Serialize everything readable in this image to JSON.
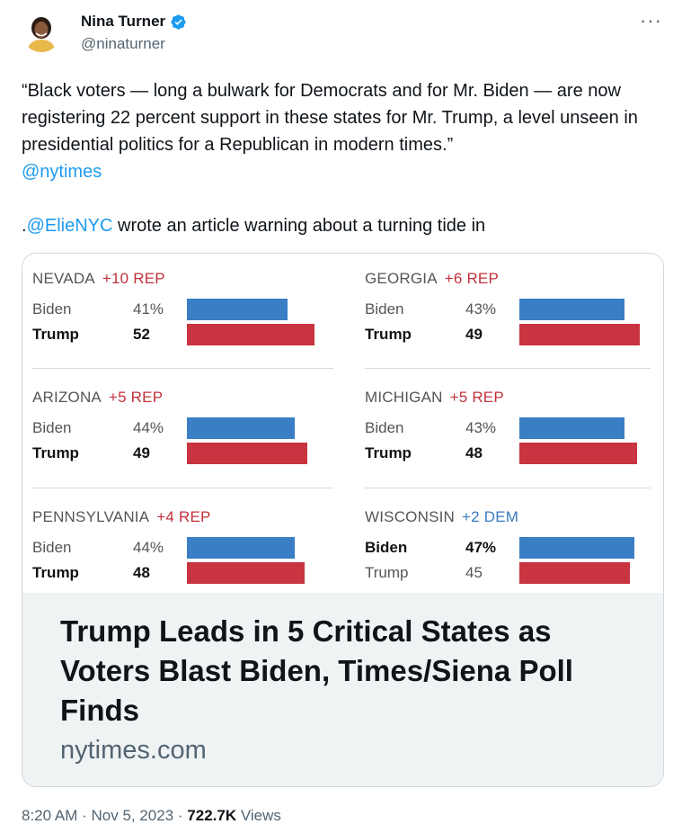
{
  "user": {
    "name": "Nina Turner",
    "handle": "@ninaturner",
    "avatar_icon": "profile-avatar",
    "verified_icon": "verified-badge-icon",
    "verified_color": "#1d9bf0"
  },
  "menu": {
    "more_label": "···"
  },
  "tweet": {
    "quote": "“Black voters — long a bulwark for Democrats and for Mr. Biden — are now registering 22 percent support in these states for Mr. Trump, a level unseen in presidential politics for a Republican in modern times.”",
    "mention1": "@nytimes",
    "line2_prefix": ".",
    "mention2": "@ElieNYC",
    "line2_suffix": " wrote an article warning about a turning tide in"
  },
  "chart_data": {
    "type": "bar",
    "colors": {
      "biden": "#3a7ec5",
      "trump": "#c8343f",
      "rep": "#c0323c",
      "dem": "#3a7cc0"
    },
    "states": [
      {
        "state": "NEVADA",
        "margin": "+10 REP",
        "party": "rep",
        "rows": [
          {
            "candidate": "Biden",
            "value": 41,
            "label": "41%",
            "lead": false
          },
          {
            "candidate": "Trump",
            "value": 52,
            "label": "52",
            "lead": true
          }
        ]
      },
      {
        "state": "GEORGIA",
        "margin": "+6 REP",
        "party": "rep",
        "rows": [
          {
            "candidate": "Biden",
            "value": 43,
            "label": "43%",
            "lead": false
          },
          {
            "candidate": "Trump",
            "value": 49,
            "label": "49",
            "lead": true
          }
        ]
      },
      {
        "state": "ARIZONA",
        "margin": "+5 REP",
        "party": "rep",
        "rows": [
          {
            "candidate": "Biden",
            "value": 44,
            "label": "44%",
            "lead": false
          },
          {
            "candidate": "Trump",
            "value": 49,
            "label": "49",
            "lead": true
          }
        ]
      },
      {
        "state": "MICHIGAN",
        "margin": "+5 REP",
        "party": "rep",
        "rows": [
          {
            "candidate": "Biden",
            "value": 43,
            "label": "43%",
            "lead": false
          },
          {
            "candidate": "Trump",
            "value": 48,
            "label": "48",
            "lead": true
          }
        ]
      },
      {
        "state": "PENNSYLVANIA",
        "margin": "+4 REP",
        "party": "rep",
        "rows": [
          {
            "candidate": "Biden",
            "value": 44,
            "label": "44%",
            "lead": false
          },
          {
            "candidate": "Trump",
            "value": 48,
            "label": "48",
            "lead": true
          }
        ]
      },
      {
        "state": "WISCONSIN",
        "margin": "+2 DEM",
        "party": "dem",
        "rows": [
          {
            "candidate": "Biden",
            "value": 47,
            "label": "47%",
            "lead": true
          },
          {
            "candidate": "Trump",
            "value": 45,
            "label": "45",
            "lead": false
          }
        ]
      }
    ]
  },
  "card": {
    "headline": "Trump Leads in 5 Critical States as Voters Blast Biden, Times/Siena Poll Finds",
    "domain": "nytimes.com"
  },
  "meta": {
    "time": "8:20 AM",
    "separator": " · ",
    "date": "Nov 5, 2023",
    "views_count": "722.7K",
    "views_label": " Views"
  }
}
